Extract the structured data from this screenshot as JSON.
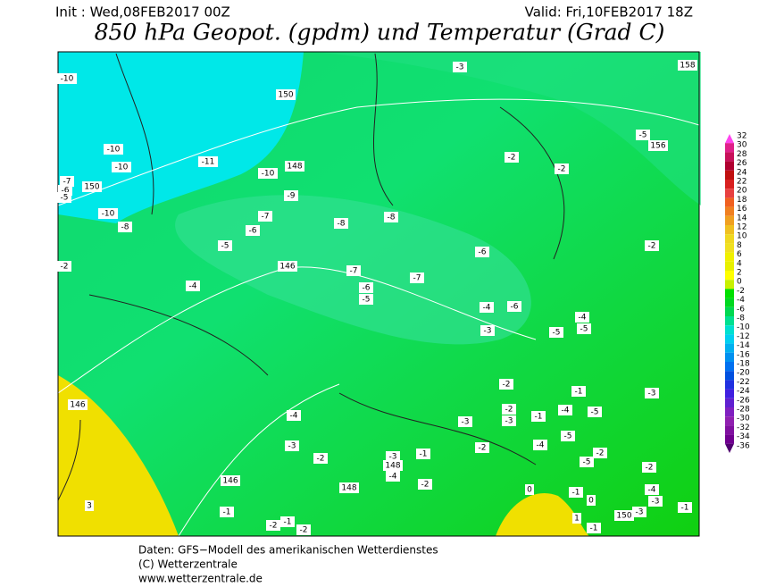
{
  "header": {
    "init": "Init : Wed,08FEB2017 00Z",
    "valid": "Valid: Fri,10FEB2017 18Z",
    "title": "850 hPa Geopot. (gpdm) und Temperatur (Grad C)"
  },
  "footer": {
    "source": "Daten: GFS−Modell des amerikanischen Wetterdienstes",
    "copyright": "(C) Wetterzentrale",
    "url": "www.wetterzentrale.de"
  },
  "colorbar": {
    "ticks": [
      32,
      30,
      28,
      26,
      24,
      22,
      20,
      18,
      16,
      14,
      12,
      10,
      8,
      6,
      4,
      2,
      0,
      -2,
      -4,
      -6,
      -8,
      -10,
      -12,
      -14,
      -16,
      -18,
      -20,
      -22,
      -24,
      -26,
      -28,
      -30,
      -32,
      -34,
      -36
    ],
    "colors": [
      "#ff44ee",
      "#e0208a",
      "#c8105a",
      "#b00030",
      "#c01010",
      "#d82020",
      "#e84040",
      "#f06020",
      "#f08020",
      "#f0a020",
      "#f0c020",
      "#f0d820",
      "#f0e020",
      "#f0f000",
      "#e8f000",
      "#ffff00",
      "#c8f000",
      "#00e000",
      "#00d820",
      "#00d850",
      "#00e090",
      "#00e0d0",
      "#00d0f0",
      "#00b0f0",
      "#0090f0",
      "#0070f0",
      "#0050e0",
      "#2030e0",
      "#4020e0",
      "#6020d0",
      "#8020c0",
      "#9020b0",
      "#8010a0",
      "#700090",
      "#500070"
    ]
  },
  "map_labels": [
    "-3",
    "158",
    "-10",
    "150",
    "-5",
    "156",
    "-10",
    "-2",
    "-11",
    "-10",
    "-2",
    "148",
    "-7",
    "-10",
    "-6",
    "150",
    "-5",
    "-9",
    "-10",
    "-7",
    "-8",
    "-8",
    "-8",
    "-6",
    "-5",
    "-6",
    "-2",
    "-2",
    "146",
    "-7",
    "-7",
    "-4",
    "-6",
    "-5",
    "-4",
    "-6",
    "-4",
    "-5",
    "-3",
    "-5",
    "-2",
    "-1",
    "-3",
    "146",
    "-2",
    "-1",
    "-4",
    "-5",
    "-3",
    "-4",
    "-3",
    "-5",
    "-3",
    "-2",
    "-4",
    "-1",
    "-2",
    "-3",
    "-2",
    "148",
    "-5",
    "-2",
    "-4",
    "146",
    "-2",
    "148",
    "0",
    "-1",
    "-4",
    "0",
    "-3",
    "3",
    "-1",
    "-1",
    "150",
    "-3",
    "-2",
    "-1",
    "-2",
    "1",
    "-1"
  ]
}
